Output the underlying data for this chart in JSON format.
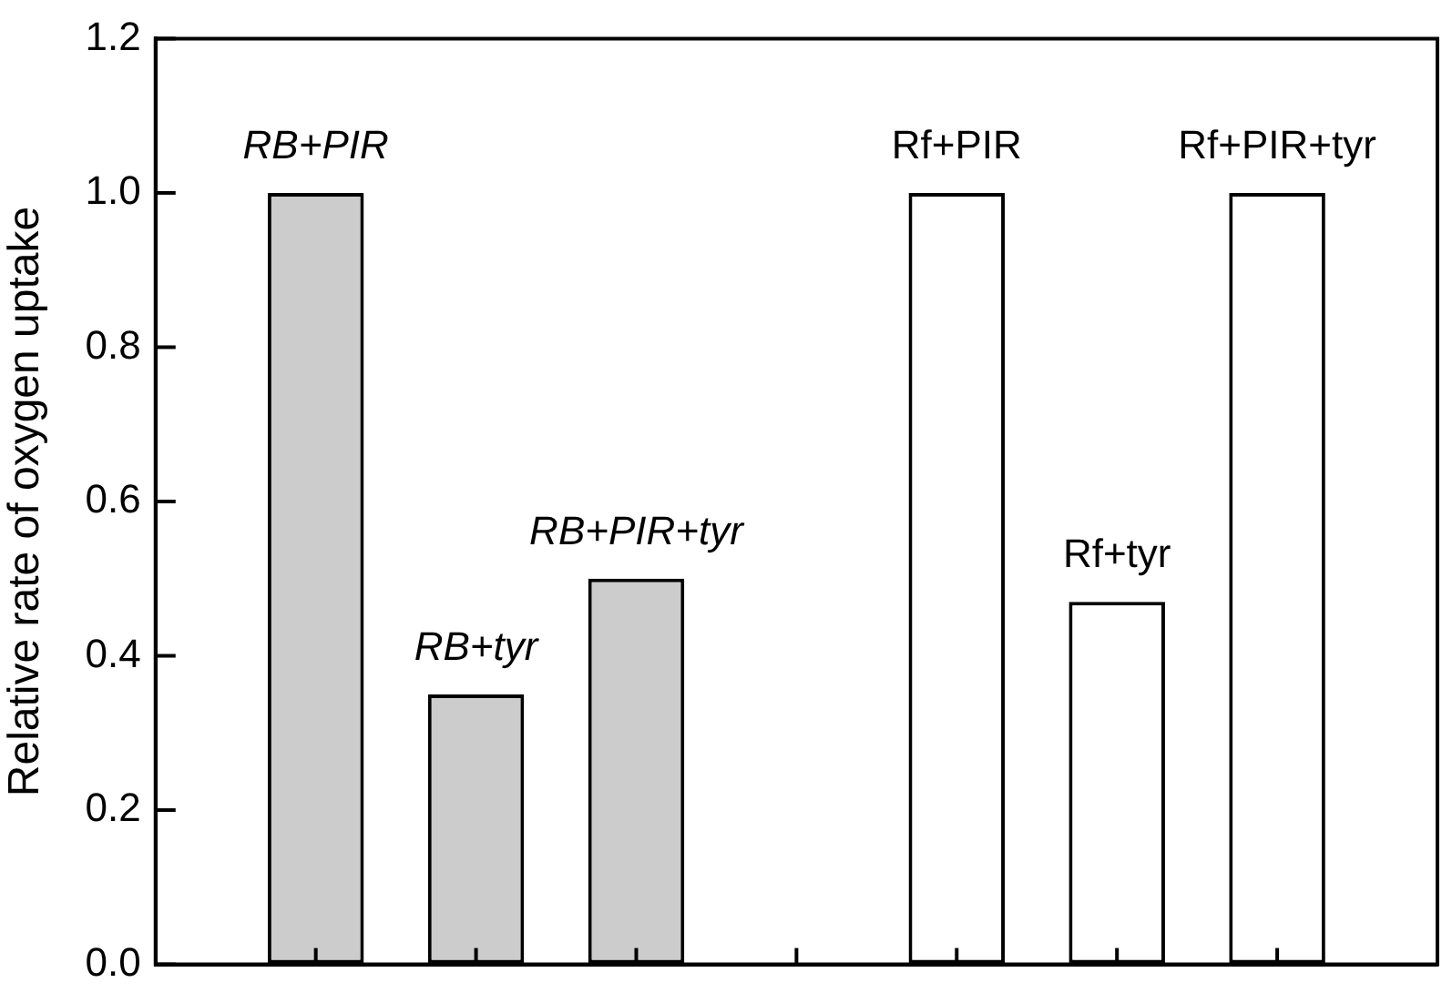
{
  "chart_data": {
    "type": "bar",
    "ylabel": "Relative rate of oxygen uptake",
    "categories": [
      null,
      "RB+PIR",
      "RB+tyr",
      "RB+PIR+tyr",
      null,
      "Rf+PIR",
      "Rf+tyr",
      "Rf+PIR+tyr",
      null
    ],
    "series": [
      {
        "color": "#cccccc",
        "values": [
          null,
          1.0,
          0.35,
          0.5,
          null,
          null,
          null,
          null,
          null
        ]
      },
      {
        "color": "#ffffff",
        "values": [
          null,
          null,
          null,
          null,
          null,
          1.0,
          0.47,
          1.0,
          null
        ]
      }
    ],
    "ylim": [
      0,
      1.2
    ],
    "yticks": [
      {
        "value": 0,
        "label": "0.0"
      },
      {
        "value": 0.2,
        "label": "0.2"
      },
      {
        "value": 0.4,
        "label": "0.4"
      },
      {
        "value": 0.6,
        "label": "0.6"
      },
      {
        "value": 0.8,
        "label": "0.8"
      },
      {
        "value": 1.0,
        "label": "1.0"
      },
      {
        "value": 1.2,
        "label": "1.2"
      }
    ],
    "grid": false,
    "legend": false
  }
}
